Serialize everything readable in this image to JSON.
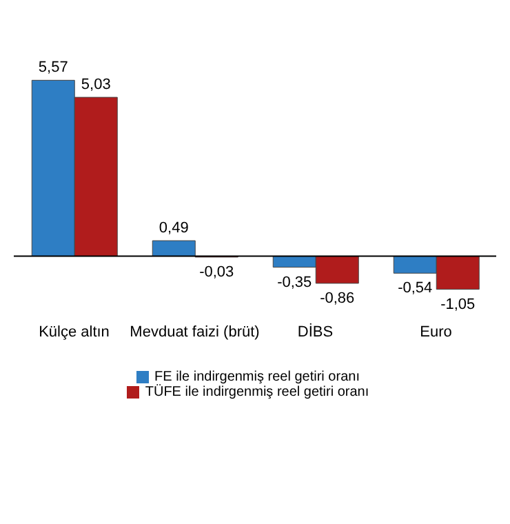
{
  "chart_data": {
    "type": "bar",
    "categories": [
      "Külçe altın",
      "Mevduat faizi (brüt)",
      "DİBS",
      "Euro"
    ],
    "series": [
      {
        "name": "FE ile indirgenmiş reel getiri oranı",
        "color": "#2e7ec4",
        "values": [
          5.57,
          0.49,
          -0.35,
          -0.54
        ],
        "value_labels": [
          "5,57",
          "0,49",
          "-0,35",
          "-0,54"
        ]
      },
      {
        "name": "TÜFE ile indirgenmiş reel getiri oranı",
        "color": "#b01c1c",
        "values": [
          5.03,
          -0.03,
          -0.86,
          -1.05
        ],
        "value_labels": [
          "5,03",
          "-0,03",
          "-0,86",
          "-1,05"
        ]
      }
    ],
    "legend": "bottom",
    "grid": false
  }
}
